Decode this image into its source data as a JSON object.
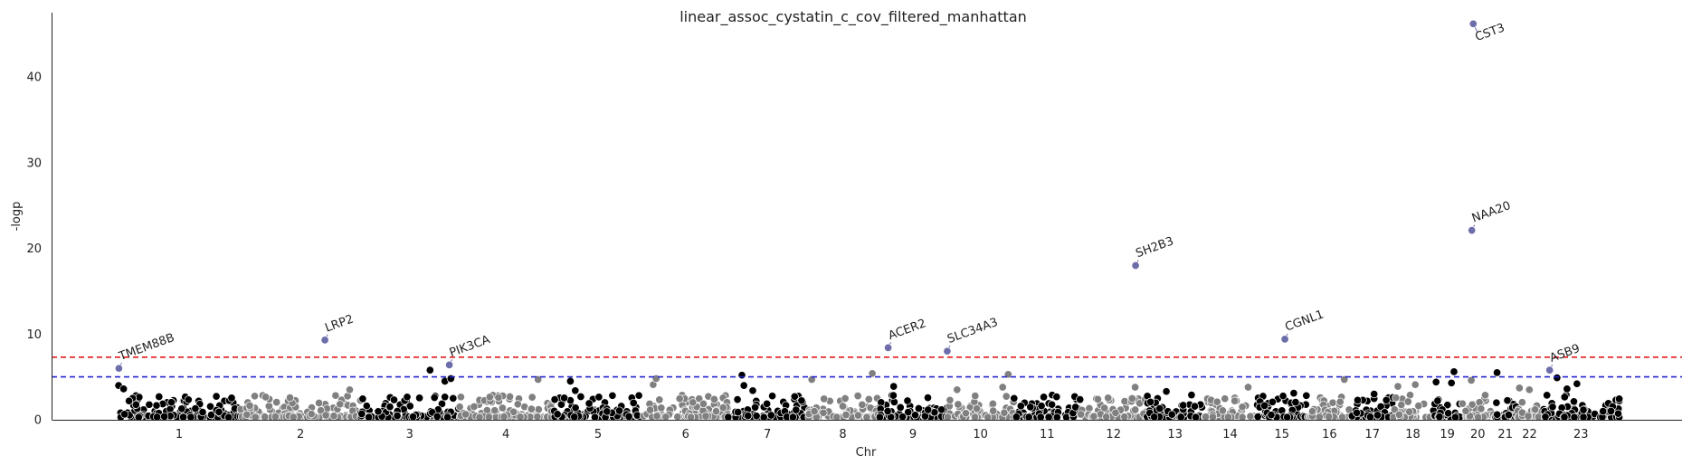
{
  "chart_data": {
    "type": "scatter",
    "subtype": "manhattan",
    "title": "linear_assoc_cystatin_c_cov_filtered_manhattan",
    "xlabel": "Chr",
    "ylabel": "-logp",
    "ylim": [
      0,
      47.5
    ],
    "yticks": [
      0,
      10,
      20,
      30,
      40
    ],
    "grid": false,
    "legend": "none",
    "colors": {
      "odd_chromosome": "#000000",
      "even_chromosome": "#808080",
      "highlight": "#6d6dab",
      "point_edge": "#ffffff",
      "genomewide_line": "#e41a1c",
      "suggestive_line": "#2222cc"
    },
    "threshold_lines": [
      {
        "y": 7.3,
        "color": "#e41a1c",
        "style": "dashed"
      },
      {
        "y": 5.0,
        "color": "#2222cc",
        "style": "dashed"
      }
    ],
    "chromosomes": [
      {
        "label": "1",
        "start": 0,
        "end": 248
      },
      {
        "label": "2",
        "start": 248,
        "end": 490
      },
      {
        "label": "3",
        "start": 490,
        "end": 688
      },
      {
        "label": "4",
        "start": 688,
        "end": 878
      },
      {
        "label": "5",
        "start": 878,
        "end": 1060
      },
      {
        "label": "6",
        "start": 1060,
        "end": 1231
      },
      {
        "label": "7",
        "start": 1231,
        "end": 1390
      },
      {
        "label": "8",
        "start": 1390,
        "end": 1535
      },
      {
        "label": "9",
        "start": 1535,
        "end": 1673
      },
      {
        "label": "10",
        "start": 1673,
        "end": 1807
      },
      {
        "label": "11",
        "start": 1807,
        "end": 1942
      },
      {
        "label": "12",
        "start": 1942,
        "end": 2075
      },
      {
        "label": "13",
        "start": 2075,
        "end": 2190
      },
      {
        "label": "14",
        "start": 2190,
        "end": 2297
      },
      {
        "label": "15",
        "start": 2297,
        "end": 2399
      },
      {
        "label": "16",
        "start": 2399,
        "end": 2489
      },
      {
        "label": "17",
        "start": 2489,
        "end": 2572
      },
      {
        "label": "18",
        "start": 2572,
        "end": 2652
      },
      {
        "label": "19",
        "start": 2652,
        "end": 2711
      },
      {
        "label": "20",
        "start": 2711,
        "end": 2775
      },
      {
        "label": "21",
        "start": 2775,
        "end": 2822
      },
      {
        "label": "22",
        "start": 2822,
        "end": 2873
      },
      {
        "label": "23",
        "start": 2873,
        "end": 3029
      }
    ],
    "top_hits": [
      {
        "gene": "TMEM88B",
        "chr": "1",
        "pos": 2.5,
        "logp": 6.0
      },
      {
        "gene": "LRP2",
        "chr": "2",
        "pos": 170,
        "logp": 9.3
      },
      {
        "gene": "PIK3CA",
        "chr": "3",
        "pos": 179,
        "logp": 6.4
      },
      {
        "gene": "ACER2",
        "chr": "9",
        "pos": 19,
        "logp": 8.4
      },
      {
        "gene": "SLC34A3",
        "chr": "9",
        "pos": 138,
        "logp": 8.0
      },
      {
        "gene": "SH2B3",
        "chr": "12",
        "pos": 111,
        "logp": 18.0
      },
      {
        "gene": "CGNL1",
        "chr": "15",
        "pos": 57,
        "logp": 9.4
      },
      {
        "gene": "CST3",
        "chr": "20",
        "pos": 23,
        "logp": 46.2
      },
      {
        "gene": "NAA20",
        "chr": "20",
        "pos": 20,
        "logp": 22.1
      },
      {
        "gene": "ASB9",
        "chr": "23",
        "pos": 15,
        "logp": 5.8
      }
    ],
    "notable_points": [
      {
        "chr": "1",
        "pos": 2,
        "logp": 4.0
      },
      {
        "chr": "1",
        "pos": 12,
        "logp": 3.6
      },
      {
        "chr": "2",
        "pos": 220,
        "logp": 3.5
      },
      {
        "chr": "3",
        "pos": 140,
        "logp": 5.8
      },
      {
        "chr": "3",
        "pos": 170,
        "logp": 4.5
      },
      {
        "chr": "3",
        "pos": 182,
        "logp": 4.8
      },
      {
        "chr": "4",
        "pos": 80,
        "logp": 2.6
      },
      {
        "chr": "4",
        "pos": 160,
        "logp": 4.7
      },
      {
        "chr": "5",
        "pos": 35,
        "logp": 4.5
      },
      {
        "chr": "5",
        "pos": 45,
        "logp": 3.4
      },
      {
        "chr": "6",
        "pos": 20,
        "logp": 4.1
      },
      {
        "chr": "6",
        "pos": 26,
        "logp": 4.8
      },
      {
        "chr": "7",
        "pos": 28,
        "logp": 5.2
      },
      {
        "chr": "7",
        "pos": 32,
        "logp": 4.0
      },
      {
        "chr": "7",
        "pos": 50,
        "logp": 3.4
      },
      {
        "chr": "8",
        "pos": 10,
        "logp": 4.7
      },
      {
        "chr": "8",
        "pos": 132,
        "logp": 5.4
      },
      {
        "chr": "9",
        "pos": 30,
        "logp": 3.9
      },
      {
        "chr": "10",
        "pos": 20,
        "logp": 3.5
      },
      {
        "chr": "10",
        "pos": 123,
        "logp": 5.3
      },
      {
        "chr": "10",
        "pos": 112,
        "logp": 3.8
      },
      {
        "chr": "12",
        "pos": 110,
        "logp": 3.8
      },
      {
        "chr": "13",
        "pos": 40,
        "logp": 3.3
      },
      {
        "chr": "14",
        "pos": 90,
        "logp": 3.8
      },
      {
        "chr": "15",
        "pos": 75,
        "logp": 3.1
      },
      {
        "chr": "16",
        "pos": 75,
        "logp": 4.7
      },
      {
        "chr": "17",
        "pos": 45,
        "logp": 3.0
      },
      {
        "chr": "18",
        "pos": 10,
        "logp": 3.9
      },
      {
        "chr": "18",
        "pos": 45,
        "logp": 4.1
      },
      {
        "chr": "19",
        "pos": 7,
        "logp": 4.4
      },
      {
        "chr": "19",
        "pos": 43,
        "logp": 5.6
      },
      {
        "chr": "19",
        "pos": 38,
        "logp": 4.3
      },
      {
        "chr": "20",
        "pos": 19,
        "logp": 4.6
      },
      {
        "chr": "21",
        "pos": 7,
        "logp": 5.5
      },
      {
        "chr": "22",
        "pos": 5,
        "logp": 3.7
      },
      {
        "chr": "22",
        "pos": 25,
        "logp": 3.5
      },
      {
        "chr": "23",
        "pos": 30,
        "logp": 4.9
      },
      {
        "chr": "23",
        "pos": 70,
        "logp": 4.2
      },
      {
        "chr": "23",
        "pos": 50,
        "logp": 3.6
      }
    ]
  }
}
